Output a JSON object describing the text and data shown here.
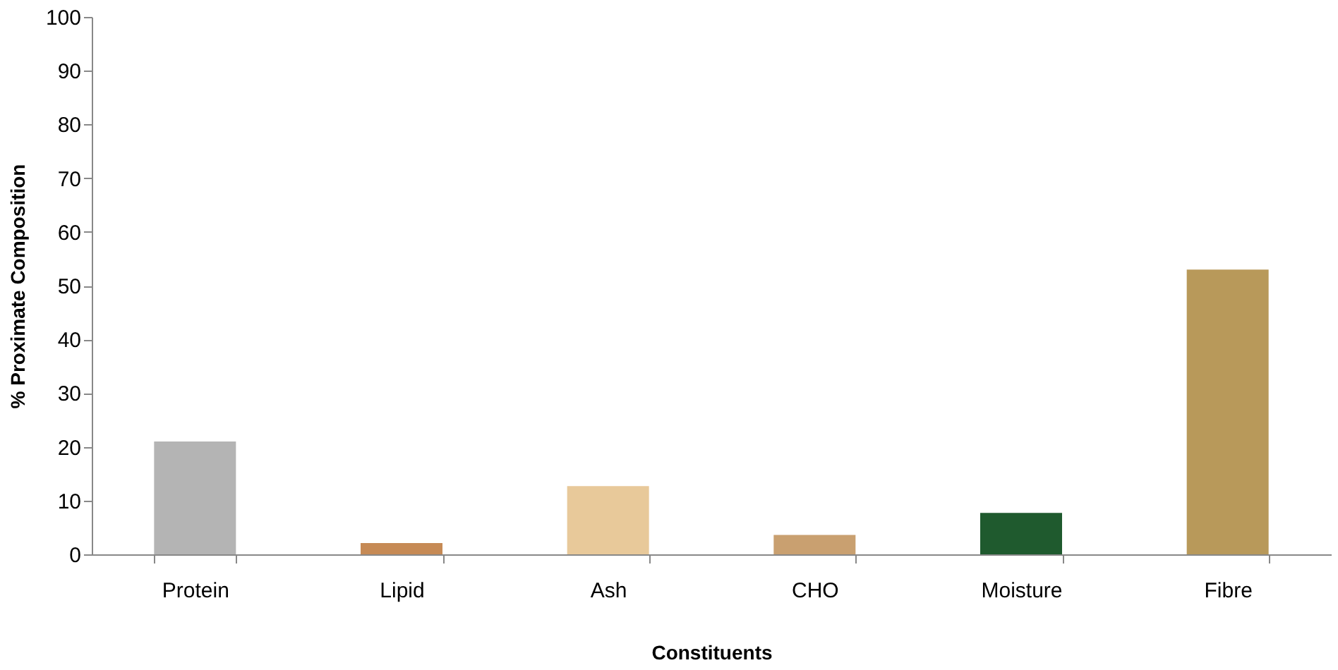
{
  "chart_data": {
    "type": "bar",
    "xlabel": "Constituents",
    "ylabel": "% Proximate Composition",
    "categories": [
      "Protein",
      "Lipid",
      "Ash",
      "CHO",
      "Moisture",
      "Fibre"
    ],
    "values": [
      21,
      2.1,
      12.7,
      3.6,
      7.7,
      53
    ],
    "colors": [
      "#b4b4b4",
      "#c68a55",
      "#e8c99a",
      "#c9a070",
      "#1f5a2e",
      "#b8995a"
    ],
    "ylim": [
      0,
      100
    ],
    "yticks": [
      0,
      10,
      20,
      30,
      40,
      50,
      60,
      70,
      80,
      90,
      100
    ],
    "grid": false
  }
}
